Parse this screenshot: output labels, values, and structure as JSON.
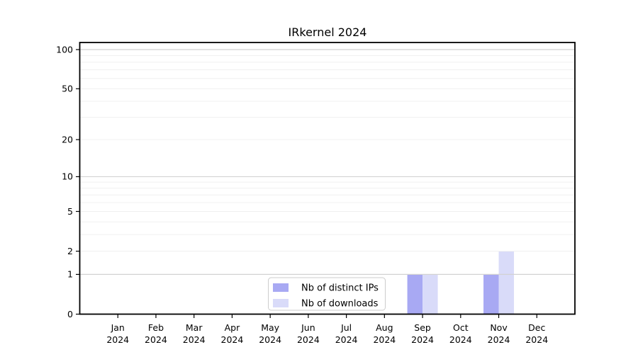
{
  "chart_data": {
    "type": "bar",
    "title": "IRkernel 2024",
    "categories": [
      "Jan",
      "Feb",
      "Mar",
      "Apr",
      "May",
      "Jun",
      "Jul",
      "Aug",
      "Sep",
      "Oct",
      "Nov",
      "Dec"
    ],
    "year": "2024",
    "series": [
      {
        "name": "Nb of distinct IPs",
        "color": "#a8a9f3",
        "values": [
          0,
          0,
          0,
          0,
          0,
          0,
          0,
          0,
          1,
          0,
          1,
          0
        ]
      },
      {
        "name": "Nb of downloads",
        "color": "#d9dbf9",
        "values": [
          0,
          0,
          0,
          0,
          0,
          0,
          0,
          0,
          1,
          0,
          2,
          0
        ]
      }
    ],
    "y_scale": "log1p",
    "y_ticks": [
      0,
      1,
      2,
      5,
      10,
      20,
      50,
      100
    ],
    "y_minor_ticks": [
      2,
      3,
      4,
      5,
      6,
      7,
      8,
      9,
      20,
      30,
      40,
      50,
      60,
      70,
      80,
      90
    ],
    "y_decade_ticks": [
      1,
      10,
      100
    ],
    "ylim": [
      0,
      114
    ],
    "xlabel": "",
    "ylabel": "",
    "grid": true,
    "grid_minor_color": "#f0f0f0",
    "grid_major_color": "#d2d2d2",
    "axis_color": "#000000",
    "legend_position": "lower center"
  }
}
